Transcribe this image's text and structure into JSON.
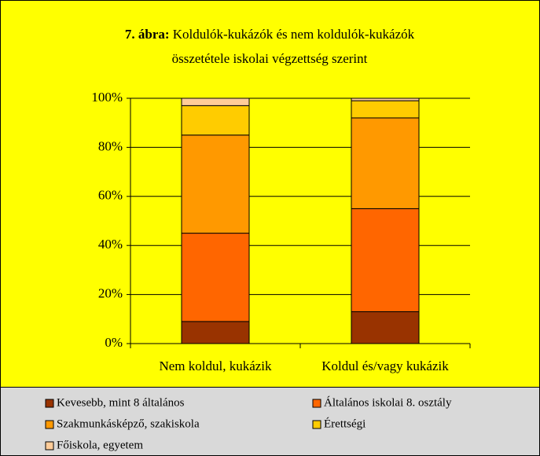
{
  "chart_data": {
    "type": "stacked_bar",
    "figure_label": "7. ábra:",
    "title_lines": [
      "Koldulók-kukázók és nem koldulók-kukázók",
      "összetétele iskolai végzettség szerint"
    ],
    "categories": [
      "Nem koldul, kukázik",
      "Koldul és/vagy kukázik"
    ],
    "series": [
      {
        "name": "Kevesebb, mint 8 általános",
        "color": "#993300",
        "values": [
          9,
          13
        ]
      },
      {
        "name": "Általános iskolai 8. osztály",
        "color": "#ff6600",
        "values": [
          36,
          42
        ]
      },
      {
        "name": "Szakmunkásképző, szakiskola",
        "color": "#ff9900",
        "values": [
          40,
          37
        ]
      },
      {
        "name": "Érettségi",
        "color": "#ffcc00",
        "values": [
          12,
          7
        ]
      },
      {
        "name": "Főiskola, egyetem",
        "color": "#ffcc99",
        "values": [
          3,
          1
        ]
      }
    ],
    "ylim": [
      0,
      100
    ],
    "yticks": [
      {
        "value": 0,
        "label": "0%"
      },
      {
        "value": 20,
        "label": "20%"
      },
      {
        "value": 40,
        "label": "40%"
      },
      {
        "value": 60,
        "label": "60%"
      },
      {
        "value": 80,
        "label": "80%"
      },
      {
        "value": 100,
        "label": "100%"
      }
    ],
    "grid": true,
    "legend": "bottom"
  }
}
